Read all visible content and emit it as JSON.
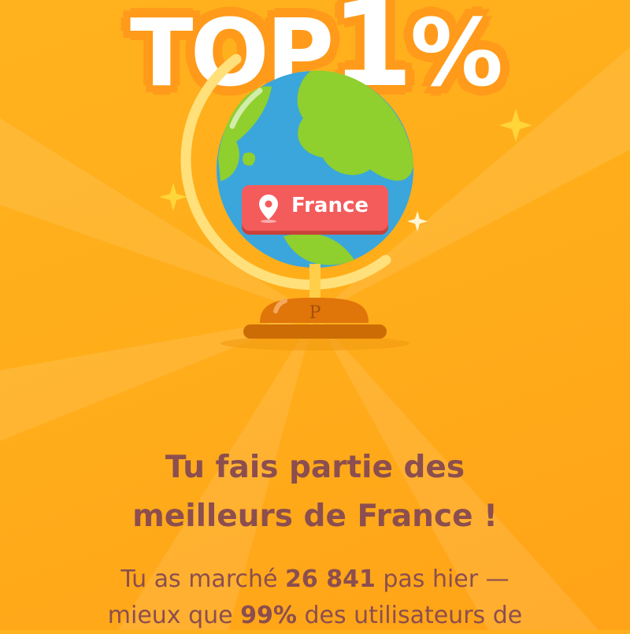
{
  "hero": {
    "title_prefix": "TOP",
    "title_number": "1",
    "title_suffix": "%"
  },
  "badge": {
    "icon": "location-pin-icon",
    "label": "France"
  },
  "headline": {
    "line1": "Tu fais partie des",
    "line2": "meilleurs de France !"
  },
  "body": {
    "part1": "Tu as marché ",
    "steps": "26 841",
    "part2": " pas hier —",
    "part3": "mieux que ",
    "percent": "99%",
    "part4": " des utilisateurs de"
  },
  "colors": {
    "background": "#ffac1c",
    "text": "#8c4e4e",
    "badge": "#f45b5b",
    "ocean": "#3aa6dc",
    "land": "#8fcf2e"
  }
}
